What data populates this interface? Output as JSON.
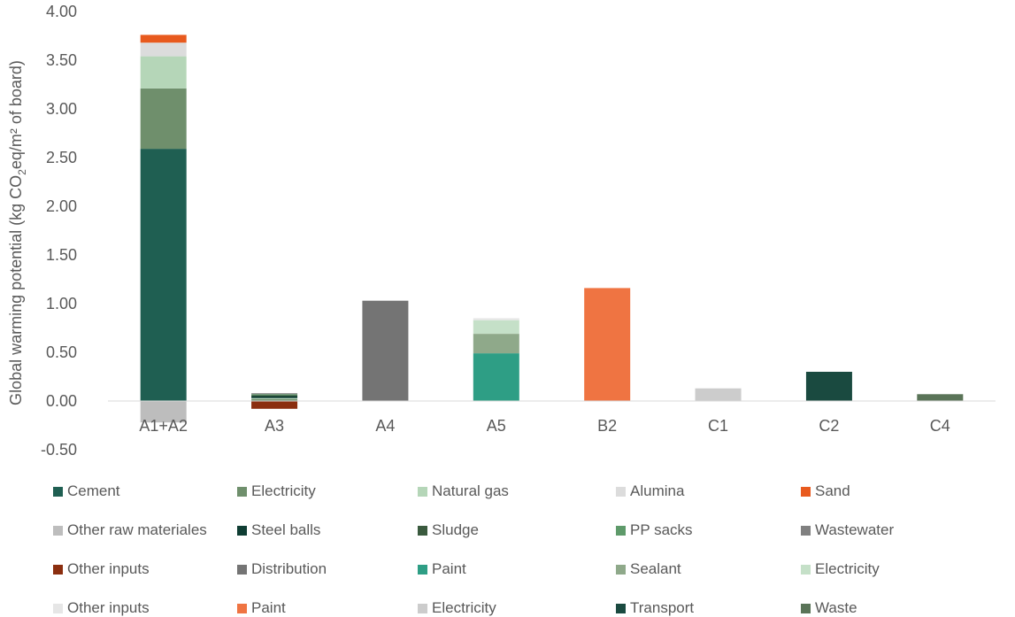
{
  "chart_data": {
    "type": "bar",
    "stacked": true,
    "title": "",
    "xlabel": "",
    "ylabel": "Global warming potential (kg CO2eq/m² of board)",
    "ylabel_parts": {
      "pre": "Global warming potential (kg CO",
      "sub": "2",
      "post": "eq/m² of board)"
    },
    "ylim": [
      -0.5,
      4.0
    ],
    "yticks": [
      "4.00",
      "3.50",
      "3.00",
      "2.50",
      "2.00",
      "1.50",
      "1.00",
      "0.50",
      "0.00",
      "-0.50"
    ],
    "ytick_values": [
      4.0,
      3.5,
      3.0,
      2.5,
      2.0,
      1.5,
      1.0,
      0.5,
      0.0,
      -0.5
    ],
    "categories": [
      "A1+A2",
      "A3",
      "A4",
      "A5",
      "B2",
      "C1",
      "C2",
      "C4"
    ],
    "grid": false,
    "legend_position": "bottom",
    "series": [
      {
        "name": "Cement",
        "color": "#1f5f52",
        "values": [
          2.59,
          0,
          0,
          0,
          0,
          0,
          0,
          0
        ]
      },
      {
        "name": "Electricity",
        "color": "#6f8f6c",
        "values": [
          0.62,
          0.02,
          0,
          0,
          0,
          0,
          0,
          0
        ]
      },
      {
        "name": "Natural gas",
        "color": "#b5d6b8",
        "values": [
          0.33,
          0.01,
          0,
          0,
          0,
          0,
          0,
          0
        ]
      },
      {
        "name": "Alumina",
        "color": "#dcdcdc",
        "values": [
          0.14,
          0,
          0,
          0,
          0,
          0,
          0,
          0
        ]
      },
      {
        "name": "Sand",
        "color": "#e85a1e",
        "values": [
          0.08,
          0,
          0,
          0,
          0,
          0,
          0,
          0
        ]
      },
      {
        "name": "Other raw materiales",
        "color": "#bdbdbd",
        "values": [
          -0.22,
          0,
          0,
          0,
          0,
          0,
          0,
          0
        ]
      },
      {
        "name": "Steel balls",
        "color": "#0f3d33",
        "values": [
          0,
          0.02,
          0,
          0,
          0,
          0,
          0,
          0
        ]
      },
      {
        "name": "Sludge",
        "color": "#3a5a3e",
        "values": [
          0,
          0.01,
          0,
          0,
          0,
          0,
          0,
          0
        ]
      },
      {
        "name": "PP sacks",
        "color": "#5e9a6a",
        "values": [
          0,
          0.01,
          0,
          0,
          0,
          0,
          0,
          0
        ]
      },
      {
        "name": "Wastewater",
        "color": "#808080",
        "values": [
          0,
          0.01,
          0,
          0,
          0,
          0,
          0,
          0
        ]
      },
      {
        "name": "Other inputs",
        "color": "#8b2e0f",
        "values": [
          0,
          -0.08,
          0,
          0,
          0,
          0,
          0,
          0
        ]
      },
      {
        "name": "Distribution",
        "color": "#747474",
        "values": [
          0,
          0,
          1.03,
          0,
          0,
          0,
          0,
          0
        ]
      },
      {
        "name": "Paint",
        "color": "#2e9e85",
        "values": [
          0,
          0,
          0,
          0.49,
          0,
          0,
          0,
          0
        ]
      },
      {
        "name": "Sealant",
        "color": "#8fa98a",
        "values": [
          0,
          0,
          0,
          0.2,
          0,
          0,
          0,
          0
        ]
      },
      {
        "name": "Electricity",
        "color": "#c5e0c8",
        "values": [
          0,
          0,
          0,
          0.14,
          0,
          0,
          0,
          0
        ]
      },
      {
        "name": "Other inputs",
        "color": "#e6e6e6",
        "values": [
          0,
          0,
          0,
          0.02,
          0,
          0,
          0,
          0
        ]
      },
      {
        "name": "Paint",
        "color": "#ef7442",
        "values": [
          0,
          0,
          0,
          0,
          1.16,
          0,
          0,
          0
        ]
      },
      {
        "name": "Electricity",
        "color": "#cccccc",
        "values": [
          0,
          0,
          0,
          0,
          0,
          0.13,
          0,
          0
        ]
      },
      {
        "name": "Transport",
        "color": "#1a4a40",
        "values": [
          0,
          0,
          0,
          0,
          0,
          0,
          0.3,
          0
        ]
      },
      {
        "name": "Waste",
        "color": "#5a7458",
        "values": [
          0,
          0,
          0,
          0,
          0,
          0,
          0,
          0.07
        ]
      }
    ]
  }
}
